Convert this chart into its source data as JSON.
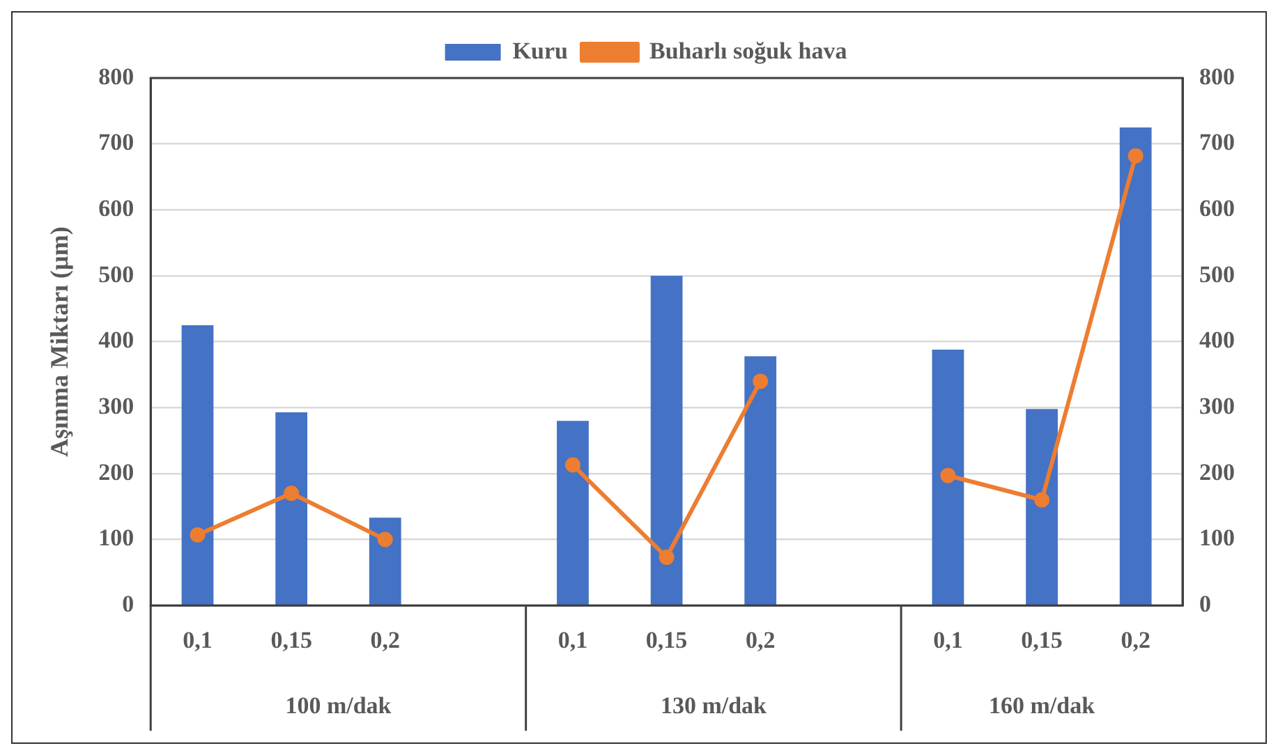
{
  "chart_data": {
    "type": "bar",
    "ylabel": "Aşınma Miktarı (µm)",
    "categories": [
      "0,1",
      "0,15",
      "0,2",
      null,
      "0,1",
      "0,15",
      "0,2",
      null,
      "0,1",
      "0,15",
      "0,2"
    ],
    "series": [
      {
        "name": "Kuru",
        "color": "#4472c4",
        "values": [
          425,
          293,
          133,
          null,
          280,
          500,
          378,
          null,
          388,
          298,
          725
        ]
      },
      {
        "name": "Buharlı soğuk hava",
        "type": "line",
        "color": "#ed7d31",
        "marker": "circle",
        "values": [
          107,
          170,
          100,
          null,
          213,
          73,
          340,
          null,
          197,
          160,
          682
        ]
      }
    ],
    "annotations": [
      "100 m/dak",
      "130 m/dak",
      "160 m/dak"
    ],
    "ylim": [
      0,
      800
    ],
    "yticks": [
      0,
      100,
      200,
      300,
      400,
      500,
      600,
      700,
      800
    ],
    "y2lim": [
      0,
      800
    ],
    "y2ticks": [
      0,
      100,
      200,
      300,
      400,
      500,
      600,
      700,
      800
    ],
    "grid": "y",
    "legend": "top"
  }
}
